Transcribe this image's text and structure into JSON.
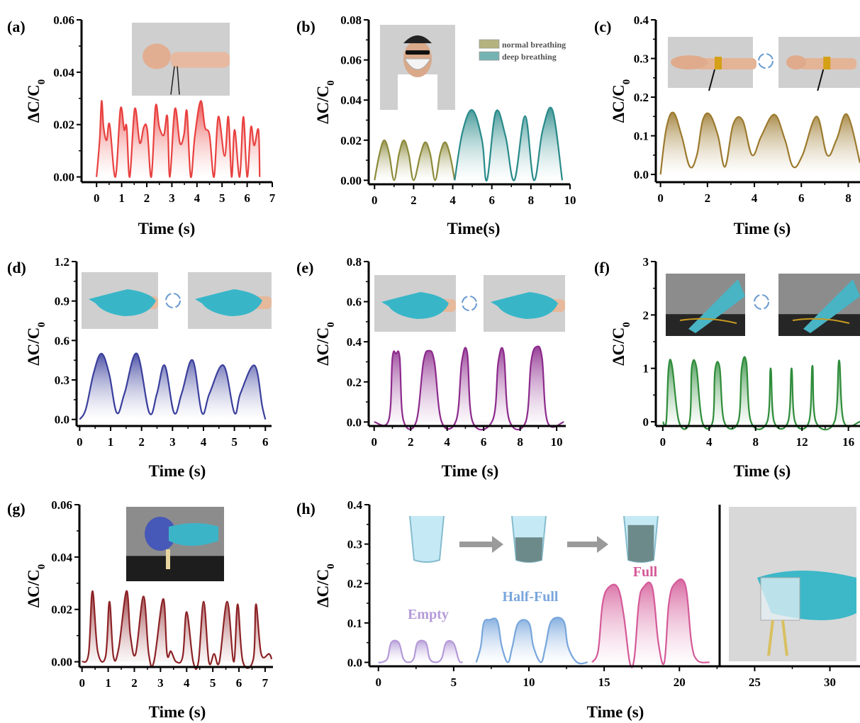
{
  "chart_data": [
    {
      "id": "a",
      "panel_label": "(a)",
      "type": "area",
      "xlabel": "Time (s)",
      "ylabel": "ΔC/C0",
      "xlim": [
        -0.6,
        7
      ],
      "ylim": [
        -0.002,
        0.06
      ],
      "xticks": [
        "0",
        "1",
        "2",
        "3",
        "4",
        "5",
        "6",
        "7"
      ],
      "xtick_values": [
        0,
        1,
        2,
        3,
        4,
        5,
        6,
        7
      ],
      "yticks": [
        "0.00",
        "0.02",
        "0.04",
        "0.06"
      ],
      "ytick_values": [
        0,
        0.02,
        0.04,
        0.06
      ],
      "inset_photos": [
        {
          "content": "fist with wrist sensor"
        }
      ],
      "series": [
        {
          "color": "#e8413f",
          "x": [
            0.0,
            0.12,
            0.2,
            0.28,
            0.4,
            0.52,
            0.75,
            0.95,
            1.1,
            1.2,
            1.32,
            1.52,
            1.72,
            1.88,
            2.02,
            2.18,
            2.35,
            2.5,
            2.68,
            2.82,
            2.92,
            3.12,
            3.32,
            3.48,
            3.6,
            3.75,
            3.92,
            4.15,
            4.32,
            4.5,
            4.68,
            4.85,
            5.1,
            5.25,
            5.38,
            5.5,
            5.7,
            5.85,
            6.0,
            6.15,
            6.28,
            6.45,
            6.5
          ],
          "y": [
            0.0,
            0.014,
            0.029,
            0.019,
            0.014,
            0.02,
            0.0,
            0.026,
            0.018,
            0.019,
            0.0,
            0.026,
            0.013,
            0.019,
            0.018,
            0.0,
            0.027,
            0.019,
            0.016,
            0.023,
            0.0,
            0.026,
            0.013,
            0.016,
            0.025,
            0.0,
            0.016,
            0.029,
            0.019,
            0.016,
            0.0,
            0.023,
            0.008,
            0.023,
            0.0,
            0.018,
            0.0,
            0.023,
            0.0,
            0.019,
            0.012,
            0.018,
            0.0
          ]
        }
      ]
    },
    {
      "id": "b",
      "panel_label": "(b)",
      "type": "area",
      "xlabel": "Time(s)",
      "ylabel": "ΔC/C0",
      "xlim": [
        -0.3,
        10
      ],
      "ylim": [
        -0.002,
        0.08
      ],
      "xticks": [
        "0",
        "2",
        "4",
        "6",
        "8",
        "10"
      ],
      "xtick_values": [
        0,
        2,
        4,
        6,
        8,
        10
      ],
      "yticks": [
        "0.00",
        "0.02",
        "0.04",
        "0.06",
        "0.08"
      ],
      "ytick_values": [
        0,
        0.02,
        0.04,
        0.06,
        0.08
      ],
      "legend": [
        "normal breathing",
        "deep breathing"
      ],
      "legend_position": "top-right",
      "inset_photos": [
        {
          "content": "person wearing mask with sensor"
        }
      ],
      "series": [
        {
          "name": "normal breathing",
          "color": "#8c8a3a",
          "x": [
            0.0,
            0.25,
            0.5,
            0.75,
            1.0,
            1.25,
            1.5,
            1.75,
            2.0,
            2.35,
            2.6,
            2.85,
            3.1,
            3.35,
            3.6,
            3.85,
            4.1
          ],
          "y": [
            0.0,
            0.013,
            0.02,
            0.013,
            0.0,
            0.013,
            0.02,
            0.013,
            0.0,
            0.013,
            0.019,
            0.013,
            0.0,
            0.013,
            0.019,
            0.013,
            0.0
          ]
        },
        {
          "name": "deep breathing",
          "color": "#2a8a8a",
          "x": [
            4.1,
            4.5,
            5.0,
            5.5,
            5.75,
            6.2,
            6.7,
            7.15,
            7.7,
            8.15,
            8.6,
            9.1,
            9.6
          ],
          "y": [
            0.0,
            0.024,
            0.035,
            0.02,
            0.0,
            0.034,
            0.022,
            0.0,
            0.032,
            0.0,
            0.025,
            0.035,
            0.0
          ]
        }
      ]
    },
    {
      "id": "c",
      "panel_label": "(c)",
      "type": "area",
      "xlabel": "Time (s)",
      "ylabel": "ΔC/C0",
      "xlim": [
        -0.2,
        8.5
      ],
      "ylim": [
        -0.02,
        0.4
      ],
      "xticks": [
        "0",
        "2",
        "4",
        "6",
        "8"
      ],
      "xtick_values": [
        0,
        2,
        4,
        6,
        8
      ],
      "yticks": [
        "0.0",
        "0.1",
        "0.2",
        "0.3",
        "0.4"
      ],
      "ytick_values": [
        0,
        0.1,
        0.2,
        0.3,
        0.4
      ],
      "inset_photos": [
        {
          "content": "open hand with wrist sensor"
        },
        {
          "content": "bent wrist with sensor"
        }
      ],
      "series": [
        {
          "color": "#9c7a2e",
          "x": [
            0.0,
            0.25,
            0.55,
            0.9,
            1.25,
            1.55,
            1.8,
            2.1,
            2.45,
            2.75,
            3.1,
            3.5,
            3.9,
            4.3,
            4.85,
            5.3,
            5.65,
            6.05,
            6.65,
            7.1,
            7.5,
            7.95,
            8.5
          ],
          "y": [
            0.0,
            0.12,
            0.16,
            0.1,
            0.02,
            0.05,
            0.14,
            0.155,
            0.1,
            0.02,
            0.13,
            0.14,
            0.05,
            0.1,
            0.155,
            0.09,
            0.02,
            0.05,
            0.15,
            0.05,
            0.09,
            0.155,
            0.03
          ]
        }
      ]
    },
    {
      "id": "d",
      "panel_label": "(d)",
      "type": "area",
      "xlabel": "Time (s)",
      "ylabel": "ΔC/C0",
      "xlim": [
        -0.1,
        6.2
      ],
      "ylim": [
        -0.05,
        1.2
      ],
      "xticks": [
        "0",
        "1",
        "2",
        "3",
        "4",
        "5",
        "6"
      ],
      "xtick_values": [
        0,
        1,
        2,
        3,
        4,
        5,
        6
      ],
      "yticks": [
        "0.0",
        "0.3",
        "0.6",
        "0.9",
        "1.2"
      ],
      "ytick_values": [
        0,
        0.3,
        0.6,
        0.9,
        1.2
      ],
      "inset_photos": [
        {
          "content": "gloved finger straight"
        },
        {
          "content": "gloved finger bent"
        }
      ],
      "series": [
        {
          "color": "#3a3f9c",
          "x": [
            0.0,
            0.2,
            0.45,
            0.7,
            0.95,
            1.2,
            1.45,
            1.85,
            2.25,
            2.5,
            2.75,
            3.05,
            3.3,
            3.65,
            3.95,
            4.2,
            4.65,
            5.0,
            5.2,
            5.65,
            5.9,
            6.0
          ],
          "y": [
            0.0,
            0.08,
            0.35,
            0.5,
            0.35,
            0.05,
            0.2,
            0.5,
            0.05,
            0.2,
            0.41,
            0.05,
            0.2,
            0.45,
            0.05,
            0.2,
            0.41,
            0.05,
            0.2,
            0.41,
            0.1,
            0.0
          ]
        }
      ]
    },
    {
      "id": "e",
      "panel_label": "(e)",
      "type": "area",
      "xlabel": "Time (s)",
      "ylabel": "ΔC/C0",
      "xlim": [
        -0.3,
        10.5
      ],
      "ylim": [
        -0.02,
        0.8
      ],
      "xticks": [
        "0",
        "2",
        "4",
        "6",
        "8",
        "10"
      ],
      "xtick_values": [
        0,
        2,
        4,
        6,
        8,
        10
      ],
      "yticks": [
        "0.0",
        "0.2",
        "0.4",
        "0.6",
        "0.8"
      ],
      "ytick_values": [
        0,
        0.2,
        0.4,
        0.6,
        0.8
      ],
      "inset_photos": [
        {
          "content": "gloved hand flat"
        },
        {
          "content": "gloved hand bent at wrist"
        }
      ],
      "series": [
        {
          "color": "#8c2a8c",
          "x": [
            0.0,
            0.8,
            1.0,
            1.2,
            1.4,
            1.6,
            2.3,
            2.7,
            3.0,
            3.3,
            3.7,
            4.5,
            4.8,
            5.1,
            5.4,
            6.5,
            6.8,
            7.1,
            7.4,
            8.3,
            8.6,
            8.9,
            9.2,
            9.5,
            10.4
          ],
          "y": [
            0.0,
            0.01,
            0.32,
            0.34,
            0.32,
            0.01,
            0.0,
            0.3,
            0.355,
            0.3,
            0.0,
            0.01,
            0.3,
            0.345,
            0.0,
            0.01,
            0.3,
            0.345,
            0.01,
            0.0,
            0.3,
            0.375,
            0.32,
            0.0,
            0.0
          ]
        }
      ]
    },
    {
      "id": "f",
      "panel_label": "(f)",
      "type": "area",
      "xlabel": "Time (s)",
      "ylabel": "ΔC/C0",
      "xlim": [
        -0.6,
        17
      ],
      "ylim": [
        -0.08,
        3
      ],
      "xticks": [
        "0",
        "4",
        "8",
        "12",
        "16"
      ],
      "xtick_values": [
        0,
        4,
        8,
        12,
        16
      ],
      "yticks": [
        "0",
        "1",
        "2",
        "3"
      ],
      "ytick_values": [
        0,
        1,
        2,
        3
      ],
      "inset_photos": [
        {
          "content": "gloved finger near sensor on table"
        },
        {
          "content": "gloved finger pressing sensor"
        }
      ],
      "series": [
        {
          "color": "#2e8c3a",
          "x": [
            0.0,
            0.3,
            0.5,
            0.8,
            1.4,
            2.3,
            2.5,
            2.9,
            3.4,
            4.3,
            4.5,
            4.9,
            5.3,
            6.5,
            6.8,
            7.2,
            7.6,
            9.0,
            9.3,
            9.6,
            10.8,
            11.1,
            11.4,
            12.6,
            12.9,
            13.2,
            14.8,
            15.2,
            15.6,
            17.0
          ],
          "y": [
            0.0,
            0.0,
            1.0,
            1.05,
            0.0,
            0.0,
            1.02,
            1.02,
            0.0,
            0.0,
            0.95,
            1.02,
            0.0,
            0.0,
            1.0,
            1.12,
            0.0,
            0.0,
            1.0,
            0.0,
            0.0,
            1.0,
            0.0,
            0.0,
            1.05,
            0.0,
            0.0,
            1.15,
            0.0,
            0.0
          ]
        }
      ]
    },
    {
      "id": "g",
      "panel_label": "(g)",
      "type": "area",
      "xlabel": "Time (s)",
      "ylabel": "ΔC/C0",
      "xlim": [
        -0.1,
        7.3
      ],
      "ylim": [
        -0.002,
        0.06
      ],
      "xticks": [
        "0",
        "1",
        "2",
        "3",
        "4",
        "5",
        "6",
        "7"
      ],
      "xtick_values": [
        0,
        1,
        2,
        3,
        4,
        5,
        6,
        7
      ],
      "yticks": [
        "0.00",
        "0.02",
        "0.04",
        "0.06"
      ],
      "ytick_values": [
        0,
        0.02,
        0.04,
        0.06
      ],
      "inset_photos": [
        {
          "content": "gloved hand squeezing rubber bulb on sensor"
        }
      ],
      "series": [
        {
          "color": "#8c2226",
          "x": [
            0.0,
            0.25,
            0.4,
            0.6,
            0.9,
            1.05,
            1.2,
            1.4,
            1.7,
            1.85,
            2.05,
            2.35,
            2.55,
            2.75,
            3.1,
            3.25,
            3.4,
            3.6,
            3.85,
            4.0,
            4.25,
            4.45,
            4.65,
            4.85,
            5.05,
            5.25,
            5.55,
            5.8,
            5.95,
            6.15,
            6.55,
            6.65,
            6.85,
            7.15,
            7.25
          ],
          "y": [
            0.0,
            0.003,
            0.027,
            0.004,
            0.002,
            0.023,
            0.002,
            0.005,
            0.027,
            0.01,
            0.003,
            0.025,
            0.003,
            0.0,
            0.024,
            0.003,
            0.004,
            0.0,
            0.002,
            0.019,
            0.0,
            0.0,
            0.023,
            0.0,
            0.003,
            0.0,
            0.023,
            0.0,
            0.022,
            0.0,
            0.001,
            0.022,
            0.003,
            0.003,
            0.001
          ]
        }
      ]
    },
    {
      "id": "h",
      "panel_label": "(h)",
      "type": "area",
      "xlabel": "Time (s)",
      "ylabel": "ΔC/C0",
      "xlim": [
        -0.6,
        32
      ],
      "ylim": [
        -0.01,
        0.4
      ],
      "xticks": [
        "0",
        "5",
        "10",
        "15",
        "20",
        "25",
        "30"
      ],
      "xtick_values": [
        0,
        5,
        10,
        15,
        20,
        25,
        30
      ],
      "yticks": [
        "0.0",
        "0.1",
        "0.2",
        "0.3",
        "0.4"
      ],
      "ytick_values": [
        0,
        0.1,
        0.2,
        0.3,
        0.4
      ],
      "annotations": [
        "Empty",
        "Half-Full",
        "Full"
      ],
      "inset_photos": [
        {
          "content": "beaker icons: empty, half-full, full"
        },
        {
          "content": "gloved hand holding beaker over sensor"
        }
      ],
      "series": [
        {
          "name": "Empty",
          "color": "#b49ad8",
          "x": [
            0.0,
            0.2,
            0.6,
            0.85,
            1.35,
            1.65,
            2.0,
            2.35,
            2.6,
            3.15,
            3.4,
            3.8,
            4.2,
            4.5,
            5.0,
            5.35,
            5.6
          ],
          "y": [
            0.0,
            0.0,
            0.01,
            0.05,
            0.05,
            0.01,
            0.0,
            0.01,
            0.05,
            0.05,
            0.01,
            0.0,
            0.01,
            0.05,
            0.048,
            0.005,
            0.0
          ]
        },
        {
          "name": "Half-Full",
          "color": "#78a6dc",
          "x": [
            6.5,
            6.8,
            7.0,
            7.4,
            7.9,
            8.2,
            8.6,
            8.9,
            9.3,
            10.0,
            10.3,
            10.8,
            11.1,
            11.5,
            12.3,
            12.6,
            13.2,
            13.9
          ],
          "y": [
            0.0,
            0.04,
            0.1,
            0.108,
            0.105,
            0.04,
            0.0,
            0.04,
            0.1,
            0.1,
            0.04,
            0.0,
            0.04,
            0.105,
            0.105,
            0.04,
            0.0,
            0.0
          ]
        },
        {
          "name": "Full",
          "color": "#d45a98",
          "x": [
            14.2,
            14.6,
            14.9,
            15.3,
            15.9,
            16.3,
            16.7,
            17.0,
            17.3,
            17.6,
            18.2,
            18.6,
            19.0,
            19.3,
            19.7,
            20.4,
            20.8,
            21.2,
            22.0
          ],
          "y": [
            0.0,
            0.03,
            0.15,
            0.19,
            0.19,
            0.12,
            0.0,
            0.01,
            0.15,
            0.19,
            0.19,
            0.05,
            0.0,
            0.15,
            0.2,
            0.195,
            0.05,
            0.005,
            0.0
          ]
        }
      ]
    }
  ]
}
